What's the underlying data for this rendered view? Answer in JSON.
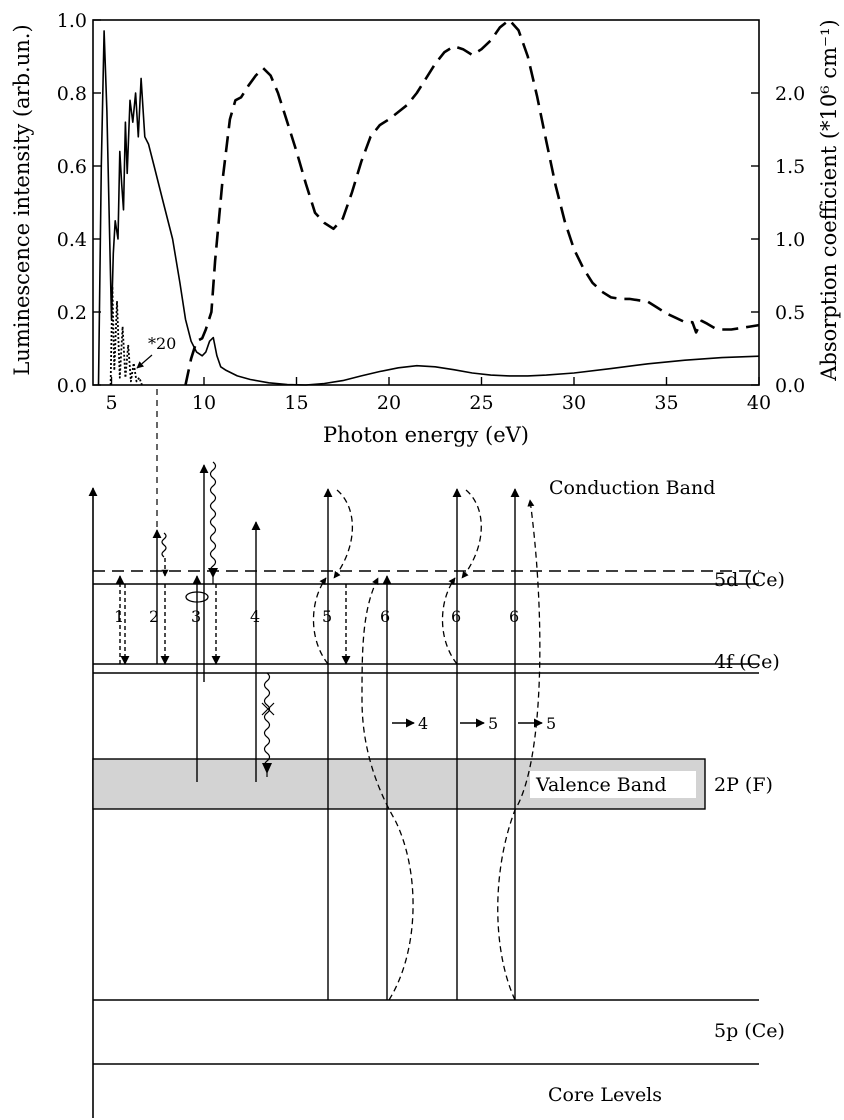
{
  "chart_data": {
    "type": "line",
    "xlabel": "Photon energy (eV)",
    "ylabel_left": "Luminescence intensity (arb.un.)",
    "ylabel_right": "Absorption coefficient (*10⁶ cm⁻¹)",
    "xlim": [
      4,
      40
    ],
    "ylim_left": [
      0,
      1.0
    ],
    "ylim_right": [
      0,
      2.5
    ],
    "x_ticks": [
      "5",
      "10",
      "15",
      "20",
      "25",
      "30",
      "35",
      "40"
    ],
    "y_left_ticks": [
      "0.0",
      "0.2",
      "0.4",
      "0.6",
      "0.8",
      "1.0"
    ],
    "y_right_ticks": [
      "0.0",
      "0.5",
      "1.0",
      "1.5",
      "2.0"
    ],
    "annotation": "*20",
    "series": [
      {
        "axis": "left",
        "style": "solid",
        "x": [
          4.3,
          4.45,
          4.6,
          4.75,
          4.9,
          5.0,
          5.1,
          5.2,
          5.35,
          5.45,
          5.55,
          5.65,
          5.75,
          5.85,
          6.0,
          6.15,
          6.3,
          6.45,
          6.6,
          6.8,
          7.0,
          7.3,
          7.8,
          8.3,
          8.7,
          9.0,
          9.3,
          9.6,
          9.9,
          10.1,
          10.3,
          10.5,
          10.7,
          10.9,
          11.2,
          11.8,
          12.5,
          13.5,
          14.5,
          15.5,
          16.5,
          17.5,
          18.5,
          19.5,
          20.5,
          21.5,
          22.5,
          23.5,
          24.5,
          25.5,
          26.5,
          27.5,
          28.5,
          30,
          32,
          34,
          36,
          38,
          40
        ],
        "y": [
          0.0,
          0.6,
          0.97,
          0.75,
          0.4,
          0.18,
          0.36,
          0.45,
          0.4,
          0.64,
          0.55,
          0.48,
          0.72,
          0.58,
          0.78,
          0.72,
          0.8,
          0.68,
          0.84,
          0.68,
          0.66,
          0.6,
          0.5,
          0.4,
          0.28,
          0.18,
          0.12,
          0.09,
          0.08,
          0.09,
          0.12,
          0.13,
          0.08,
          0.05,
          0.04,
          0.025,
          0.015,
          0.006,
          0.001,
          0.0,
          0.004,
          0.012,
          0.025,
          0.037,
          0.047,
          0.053,
          0.05,
          0.042,
          0.033,
          0.027,
          0.025,
          0.025,
          0.027,
          0.033,
          0.045,
          0.058,
          0.068,
          0.075,
          0.079
        ]
      },
      {
        "axis": "left",
        "style": "dotted",
        "x": [
          4.95,
          5.05,
          5.15,
          5.3,
          5.45,
          5.6,
          5.75,
          5.9,
          6.05,
          6.2,
          6.35,
          6.5,
          6.65
        ],
        "y": [
          0.0,
          0.27,
          0.04,
          0.23,
          0.02,
          0.16,
          0.02,
          0.11,
          0.01,
          0.06,
          0.01,
          0.02,
          0.0
        ]
      },
      {
        "axis": "right",
        "style": "dashed",
        "x": [
          9.0,
          9.3,
          9.6,
          9.9,
          10.1,
          10.4,
          10.6,
          11.0,
          11.4,
          11.7,
          12.0,
          12.4,
          12.8,
          13.2,
          13.6,
          14.0,
          14.5,
          15.0,
          15.5,
          16.0,
          16.5,
          17.0,
          17.5,
          18.0,
          18.5,
          19.0,
          19.5,
          20.0,
          20.5,
          21.0,
          21.5,
          22.0,
          22.5,
          23.0,
          23.5,
          24.0,
          24.5,
          25.0,
          25.5,
          26.0,
          26.5,
          27.0,
          27.5,
          28.0,
          28.5,
          29.0,
          29.5,
          30.0,
          30.5,
          31.0,
          31.5,
          32.0,
          32.5,
          33.0,
          33.5,
          34.0,
          34.5,
          35.0,
          35.5,
          36.0,
          36.4,
          36.6,
          36.9,
          37.2,
          37.6,
          38.0,
          38.5,
          39.0,
          39.5,
          40.0
        ],
        "y": [
          0.0,
          0.18,
          0.3,
          0.32,
          0.38,
          0.5,
          0.85,
          1.4,
          1.82,
          1.95,
          1.97,
          2.05,
          2.12,
          2.17,
          2.12,
          2.0,
          1.8,
          1.6,
          1.38,
          1.18,
          1.11,
          1.07,
          1.14,
          1.32,
          1.53,
          1.7,
          1.78,
          1.82,
          1.87,
          1.92,
          2.0,
          2.1,
          2.2,
          2.28,
          2.32,
          2.3,
          2.26,
          2.3,
          2.36,
          2.45,
          2.5,
          2.43,
          2.25,
          1.98,
          1.67,
          1.37,
          1.12,
          0.93,
          0.8,
          0.7,
          0.64,
          0.6,
          0.59,
          0.59,
          0.58,
          0.57,
          0.53,
          0.49,
          0.46,
          0.43,
          0.43,
          0.36,
          0.44,
          0.42,
          0.39,
          0.38,
          0.38,
          0.39,
          0.4,
          0.41
        ]
      }
    ]
  },
  "diagram": {
    "levels": {
      "conduction_band": "Conduction Band",
      "level_5d": "5d (Ce)",
      "level_4f": "4f (Ce)",
      "valence_band": "Valence Band",
      "valence_band_right": "2P (F)",
      "level_5p": "5p (Ce)",
      "core_levels": "Core Levels"
    },
    "transition_labels": [
      "1",
      "2",
      "3",
      "4",
      "5",
      "6",
      "6",
      "6"
    ],
    "arrow_labels": [
      "4",
      "5",
      "5"
    ]
  }
}
